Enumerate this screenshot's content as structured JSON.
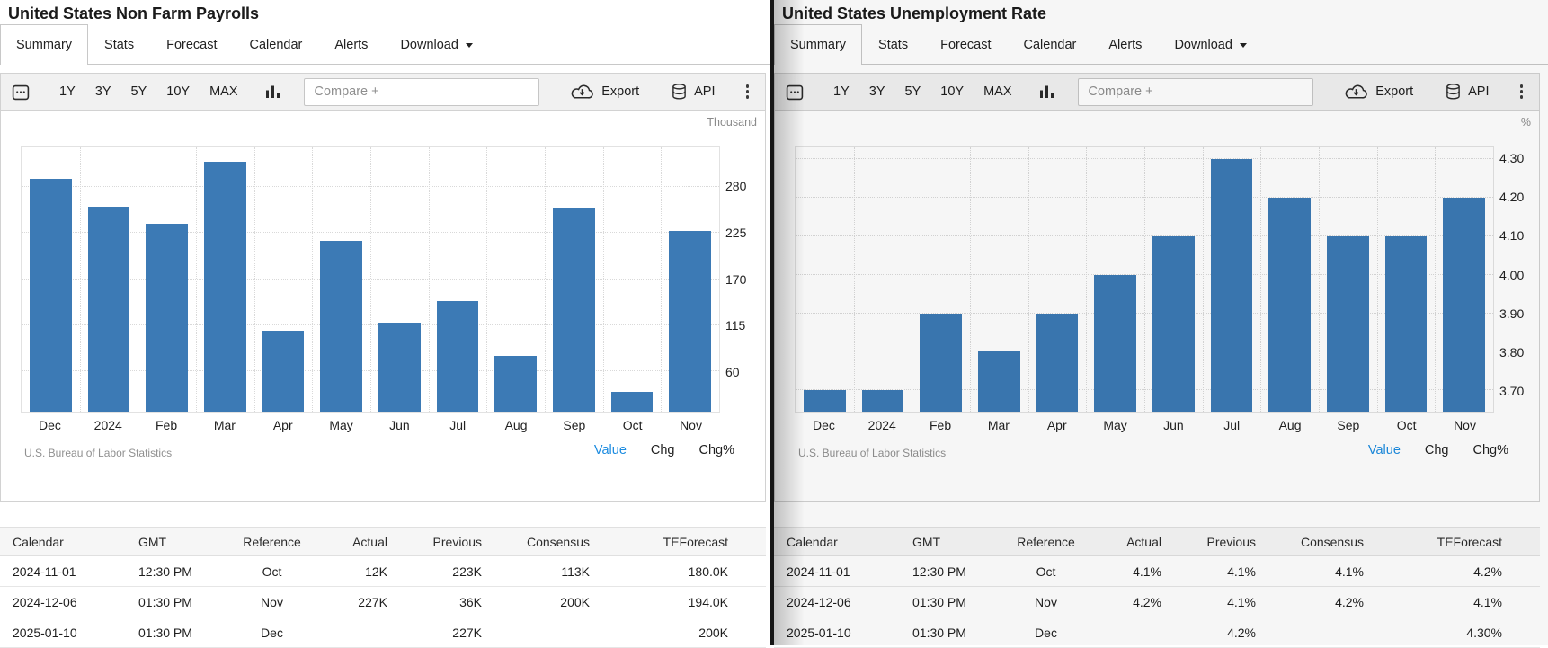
{
  "divider_color": "#161616",
  "link_blue": "#1d8ce0",
  "panels": [
    {
      "title": "United States Non Farm Payrolls",
      "tabs": {
        "items": [
          "Summary",
          "Stats",
          "Forecast",
          "Calendar",
          "Alerts",
          "Download"
        ],
        "active": "Summary"
      },
      "toolbar": {
        "ranges": [
          "1Y",
          "3Y",
          "5Y",
          "10Y",
          "MAX"
        ],
        "compare_placeholder": "Compare +",
        "export_label": "Export",
        "api_label": "API"
      },
      "chart_data": {
        "type": "bar",
        "title": "United States Non Farm Payrolls",
        "unit_label": "Thousand",
        "categories": [
          "Dec",
          "2024",
          "Feb",
          "Mar",
          "Apr",
          "May",
          "Jun",
          "Jul",
          "Aug",
          "Sep",
          "Oct",
          "Nov"
        ],
        "values": [
          290,
          256,
          236,
          310,
          108,
          216,
          118,
          144,
          78,
          255,
          36,
          227
        ],
        "yticks": [
          60,
          115,
          170,
          225,
          280
        ],
        "ytick_labels": [
          "60",
          "115",
          "170",
          "225",
          "280"
        ],
        "ylim": [
          12,
          327
        ],
        "ylabel": "Thousand",
        "xlabel": "",
        "grid": "dotted",
        "bar_color": "#3C7AB5"
      },
      "source": "U.S. Bureau of Labor Statistics",
      "series_links": {
        "items": [
          "Value",
          "Chg",
          "Chg%"
        ],
        "active": "Value"
      },
      "table": {
        "headers": [
          "Calendar",
          "GMT",
          "Reference",
          "Actual",
          "Previous",
          "Consensus",
          "TEForecast"
        ],
        "rows": [
          [
            "2024-11-01",
            "12:30 PM",
            "Oct",
            "12K",
            "223K",
            "113K",
            "180.0K"
          ],
          [
            "2024-12-06",
            "01:30 PM",
            "Nov",
            "227K",
            "36K",
            "200K",
            "194.0K"
          ],
          [
            "2025-01-10",
            "01:30 PM",
            "Dec",
            "",
            "227K",
            "",
            "200K"
          ]
        ]
      }
    },
    {
      "title": "United States Unemployment Rate",
      "tabs": {
        "items": [
          "Summary",
          "Stats",
          "Forecast",
          "Calendar",
          "Alerts",
          "Download"
        ],
        "active": "Summary"
      },
      "toolbar": {
        "ranges": [
          "1Y",
          "3Y",
          "5Y",
          "10Y",
          "MAX"
        ],
        "compare_placeholder": "Compare +",
        "export_label": "Export",
        "api_label": "API"
      },
      "chart_data": {
        "type": "bar",
        "title": "United States Unemployment Rate",
        "unit_label": "%",
        "categories": [
          "Dec",
          "2024",
          "Feb",
          "Mar",
          "Apr",
          "May",
          "Jun",
          "Jul",
          "Aug",
          "Sep",
          "Oct",
          "Nov"
        ],
        "values": [
          3.7,
          3.7,
          3.9,
          3.8,
          3.9,
          4.0,
          4.1,
          4.3,
          4.2,
          4.1,
          4.1,
          4.2
        ],
        "yticks": [
          3.7,
          3.8,
          3.9,
          4.0,
          4.1,
          4.2,
          4.3
        ],
        "ytick_labels": [
          "3.70",
          "3.80",
          "3.90",
          "4.00",
          "4.10",
          "4.20",
          "4.30"
        ],
        "ylim": [
          3.645,
          4.33
        ],
        "ylabel": "%",
        "xlabel": "",
        "grid": "dotted",
        "bar_color": "#3C7AB5"
      },
      "source": "U.S. Bureau of Labor Statistics",
      "series_links": {
        "items": [
          "Value",
          "Chg",
          "Chg%"
        ],
        "active": "Value"
      },
      "table": {
        "headers": [
          "Calendar",
          "GMT",
          "Reference",
          "Actual",
          "Previous",
          "Consensus",
          "TEForecast"
        ],
        "rows": [
          [
            "2024-11-01",
            "12:30 PM",
            "Oct",
            "4.1%",
            "4.1%",
            "4.1%",
            "4.2%"
          ],
          [
            "2024-12-06",
            "01:30 PM",
            "Nov",
            "4.2%",
            "4.1%",
            "4.2%",
            "4.1%"
          ],
          [
            "2025-01-10",
            "01:30 PM",
            "Dec",
            "",
            "4.2%",
            "",
            "4.30%"
          ]
        ]
      }
    }
  ]
}
